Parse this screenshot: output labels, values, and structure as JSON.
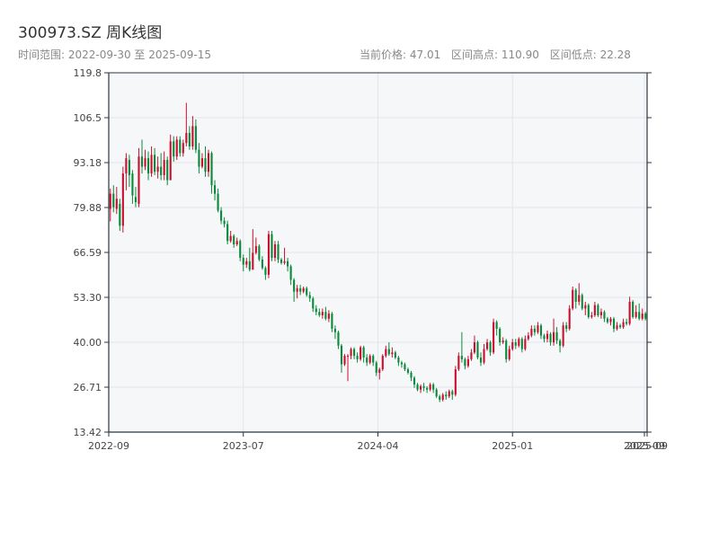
{
  "header": {
    "title": "300973.SZ 周K线图",
    "range_text": "时间范围: 2022-09-30 至 2025-09-15",
    "stat_current": "当前价格: 47.01",
    "stat_high": "区间高点: 110.90",
    "stat_low": "区间低点: 22.28"
  },
  "colors": {
    "up": "#c8102e",
    "down": "#0a8a3a",
    "plot_bg": "#f6f7f9",
    "grid": "#e3e5ea",
    "axis": "#2b3540"
  },
  "chart_data": {
    "type": "candlestick",
    "title": "300973.SZ 周K线图",
    "x_ticks": [
      {
        "label": "2022-09",
        "x": 0
      },
      {
        "label": "2023-07",
        "x": 40
      },
      {
        "label": "2024-04",
        "x": 80
      },
      {
        "label": "2025-01",
        "x": 120
      },
      {
        "label": "2025-09",
        "x": 159.2
      },
      {
        "label": "2025-09",
        "x": 160
      }
    ],
    "y_ticks": [
      "13.42",
      "26.71",
      "40.00",
      "53.30",
      "66.59",
      "79.88",
      "93.18",
      "106.5",
      "119.8"
    ],
    "ylim": [
      13.42,
      119.8
    ],
    "xlim": [
      0,
      160
    ],
    "grid": true,
    "candles": [
      [
        79.5,
        84.0,
        85.5,
        75.8
      ],
      [
        84.0,
        80.0,
        86.5,
        78.5
      ],
      [
        79.5,
        82.5,
        86.0,
        78.0
      ],
      [
        81.0,
        74.5,
        82.5,
        73.0
      ],
      [
        74.5,
        90.0,
        92.0,
        72.5
      ],
      [
        90.0,
        94.5,
        96.0,
        85.0
      ],
      [
        94.0,
        89.5,
        95.5,
        86.0
      ],
      [
        90.0,
        83.5,
        91.0,
        81.0
      ],
      [
        83.0,
        81.5,
        86.0,
        80.0
      ],
      [
        81.0,
        95.0,
        97.5,
        80.0
      ],
      [
        95.0,
        92.0,
        100.0,
        90.0
      ],
      [
        92.0,
        94.5,
        97.0,
        91.0
      ],
      [
        94.5,
        90.0,
        96.5,
        88.0
      ],
      [
        90.0,
        95.5,
        98.0,
        89.0
      ],
      [
        95.5,
        90.5,
        97.5,
        89.5
      ],
      [
        90.5,
        92.0,
        95.0,
        88.5
      ],
      [
        92.0,
        89.5,
        96.0,
        88.0
      ],
      [
        89.5,
        94.0,
        96.5,
        88.0
      ],
      [
        94.0,
        88.0,
        95.0,
        86.5
      ],
      [
        88.0,
        99.5,
        101.5,
        88.0
      ],
      [
        99.5,
        95.0,
        101.0,
        93.5
      ],
      [
        95.0,
        100.0,
        101.0,
        94.0
      ],
      [
        100.0,
        96.0,
        101.0,
        95.0
      ],
      [
        96.0,
        99.0,
        100.0,
        95.0
      ],
      [
        99.0,
        102.0,
        110.9,
        98.0
      ],
      [
        102.0,
        98.0,
        104.0,
        97.0
      ],
      [
        98.0,
        104.0,
        107.0,
        97.0
      ],
      [
        104.0,
        97.0,
        106.0,
        96.0
      ],
      [
        97.0,
        92.0,
        99.0,
        90.0
      ],
      [
        92.0,
        94.5,
        96.0,
        91.5
      ],
      [
        94.5,
        90.5,
        98.0,
        89.0
      ],
      [
        90.5,
        96.0,
        97.0,
        89.0
      ],
      [
        96.0,
        86.5,
        96.5,
        84.0
      ],
      [
        86.5,
        84.0,
        88.0,
        82.0
      ],
      [
        84.0,
        79.0,
        85.5,
        78.5
      ],
      [
        79.0,
        76.0,
        80.0,
        75.0
      ],
      [
        76.0,
        75.0,
        77.0,
        74.0
      ],
      [
        75.0,
        70.0,
        76.0,
        69.0
      ],
      [
        70.0,
        71.5,
        73.0,
        69.5
      ],
      [
        71.5,
        69.0,
        72.0,
        68.0
      ],
      [
        69.0,
        70.0,
        71.0,
        68.5
      ],
      [
        70.0,
        65.0,
        70.5,
        64.0
      ],
      [
        65.0,
        63.0,
        66.0,
        61.0
      ],
      [
        63.0,
        64.0,
        65.0,
        62.0
      ],
      [
        64.0,
        61.5,
        68.0,
        61.0
      ],
      [
        61.5,
        66.5,
        73.5,
        61.5
      ],
      [
        66.5,
        68.5,
        71.0,
        66.0
      ],
      [
        68.5,
        64.5,
        69.0,
        64.0
      ],
      [
        64.5,
        62.0,
        65.5,
        61.5
      ],
      [
        62.0,
        60.0,
        62.5,
        58.5
      ],
      [
        60.0,
        72.0,
        73.0,
        59.0
      ],
      [
        72.0,
        65.0,
        73.0,
        64.0
      ],
      [
        65.0,
        69.0,
        70.0,
        64.0
      ],
      [
        69.0,
        64.5,
        70.0,
        63.5
      ],
      [
        64.5,
        63.5,
        65.0,
        63.0
      ],
      [
        63.5,
        64.0,
        68.0,
        63.0
      ],
      [
        64.0,
        62.5,
        65.0,
        61.0
      ],
      [
        62.5,
        58.5,
        63.0,
        57.0
      ],
      [
        58.5,
        55.0,
        59.0,
        52.0
      ],
      [
        55.0,
        56.0,
        57.0,
        53.0
      ],
      [
        56.0,
        55.0,
        57.0,
        54.0
      ],
      [
        55.0,
        56.0,
        56.5,
        54.5
      ],
      [
        56.0,
        54.0,
        56.5,
        53.5
      ],
      [
        54.0,
        53.0,
        55.0,
        52.0
      ],
      [
        53.0,
        50.0,
        53.5,
        49.0
      ],
      [
        50.0,
        49.0,
        51.0,
        48.0
      ],
      [
        49.0,
        48.0,
        50.0,
        47.5
      ],
      [
        48.0,
        49.0,
        50.0,
        47.0
      ],
      [
        49.0,
        47.0,
        50.5,
        46.5
      ],
      [
        47.0,
        48.5,
        49.5,
        46.0
      ],
      [
        48.5,
        44.0,
        49.0,
        43.0
      ],
      [
        44.0,
        43.0,
        45.0,
        41.0
      ],
      [
        43.0,
        39.0,
        43.5,
        38.0
      ],
      [
        39.0,
        33.5,
        39.5,
        31.0
      ],
      [
        33.5,
        36.0,
        36.5,
        33.0
      ],
      [
        36.0,
        36.0,
        36.5,
        28.5
      ],
      [
        36.0,
        38.0,
        38.5,
        35.0
      ],
      [
        38.0,
        36.0,
        38.5,
        35.0
      ],
      [
        36.0,
        35.0,
        37.0,
        34.0
      ],
      [
        35.0,
        38.5,
        39.0,
        34.5
      ],
      [
        38.5,
        35.5,
        39.0,
        34.0
      ],
      [
        35.5,
        34.0,
        36.5,
        33.0
      ],
      [
        34.0,
        36.0,
        36.5,
        33.5
      ],
      [
        36.0,
        34.0,
        36.5,
        33.0
      ],
      [
        34.0,
        31.0,
        34.5,
        30.0
      ],
      [
        31.0,
        32.0,
        32.5,
        29.0
      ],
      [
        32.0,
        36.0,
        36.5,
        31.5
      ],
      [
        36.0,
        38.0,
        39.0,
        35.5
      ],
      [
        38.0,
        36.5,
        40.0,
        36.0
      ],
      [
        36.5,
        37.0,
        38.5,
        35.5
      ],
      [
        37.0,
        35.5,
        37.5,
        35.0
      ],
      [
        35.5,
        34.0,
        36.0,
        33.0
      ],
      [
        34.0,
        33.5,
        34.5,
        32.5
      ],
      [
        33.5,
        32.0,
        34.0,
        31.5
      ],
      [
        32.0,
        31.0,
        32.5,
        30.5
      ],
      [
        31.0,
        29.5,
        31.5,
        28.5
      ],
      [
        29.5,
        27.5,
        30.0,
        26.5
      ],
      [
        27.5,
        26.0,
        28.0,
        25.5
      ],
      [
        26.0,
        27.0,
        27.5,
        25.0
      ],
      [
        27.0,
        26.5,
        28.0,
        25.5
      ],
      [
        26.5,
        26.0,
        27.0,
        25.0
      ],
      [
        26.0,
        27.5,
        28.0,
        25.5
      ],
      [
        27.5,
        26.0,
        28.0,
        25.0
      ],
      [
        26.0,
        24.0,
        26.5,
        23.5
      ],
      [
        24.0,
        23.0,
        24.5,
        22.3
      ],
      [
        23.0,
        24.5,
        25.0,
        22.5
      ],
      [
        24.5,
        24.0,
        25.5,
        23.0
      ],
      [
        24.0,
        25.5,
        26.0,
        23.5
      ],
      [
        25.5,
        24.5,
        26.0,
        23.0
      ],
      [
        24.5,
        32.0,
        33.0,
        24.0
      ],
      [
        32.0,
        36.0,
        37.0,
        31.5
      ],
      [
        36.0,
        35.0,
        43.0,
        34.0
      ],
      [
        35.0,
        33.0,
        35.5,
        32.0
      ],
      [
        33.0,
        35.0,
        36.0,
        32.5
      ],
      [
        35.0,
        37.0,
        38.0,
        34.5
      ],
      [
        37.0,
        40.0,
        42.0,
        36.5
      ],
      [
        40.0,
        35.5,
        40.5,
        35.0
      ],
      [
        35.5,
        34.0,
        37.0,
        33.0
      ],
      [
        34.0,
        38.0,
        39.5,
        33.5
      ],
      [
        38.0,
        40.0,
        41.0,
        37.5
      ],
      [
        40.0,
        37.0,
        40.5,
        36.0
      ],
      [
        37.0,
        46.0,
        47.0,
        36.5
      ],
      [
        46.0,
        44.0,
        46.5,
        42.0
      ],
      [
        44.0,
        40.0,
        44.5,
        39.0
      ],
      [
        40.0,
        40.5,
        41.5,
        39.5
      ],
      [
        40.5,
        35.0,
        41.0,
        34.0
      ],
      [
        35.0,
        38.0,
        39.0,
        34.5
      ],
      [
        38.0,
        40.0,
        41.0,
        37.5
      ],
      [
        40.0,
        39.0,
        41.0,
        38.0
      ],
      [
        39.0,
        41.0,
        41.5,
        38.5
      ],
      [
        41.0,
        38.0,
        41.5,
        37.0
      ],
      [
        38.0,
        41.0,
        42.0,
        37.5
      ],
      [
        41.0,
        42.0,
        43.0,
        40.5
      ],
      [
        42.0,
        44.0,
        45.0,
        41.5
      ],
      [
        44.0,
        43.0,
        45.0,
        42.0
      ],
      [
        43.0,
        45.0,
        46.0,
        42.5
      ],
      [
        45.0,
        42.0,
        45.5,
        41.0
      ],
      [
        42.0,
        41.0,
        42.5,
        40.0
      ],
      [
        41.0,
        42.5,
        43.5,
        40.0
      ],
      [
        42.5,
        40.0,
        43.0,
        39.0
      ],
      [
        40.0,
        43.0,
        47.0,
        39.0
      ],
      [
        43.0,
        40.5,
        44.5,
        39.5
      ],
      [
        40.5,
        39.0,
        41.0,
        37.0
      ],
      [
        39.0,
        45.0,
        46.0,
        38.5
      ],
      [
        45.0,
        44.0,
        46.0,
        43.0
      ],
      [
        44.0,
        50.0,
        51.0,
        43.5
      ],
      [
        50.0,
        55.5,
        56.5,
        49.5
      ],
      [
        55.5,
        52.0,
        56.0,
        50.0
      ],
      [
        52.0,
        54.0,
        57.5,
        51.0
      ],
      [
        54.0,
        50.0,
        54.5,
        49.5
      ],
      [
        50.0,
        51.0,
        52.0,
        48.0
      ],
      [
        51.0,
        47.5,
        51.5,
        47.0
      ],
      [
        47.5,
        48.0,
        49.0,
        47.0
      ],
      [
        48.0,
        51.0,
        52.0,
        47.5
      ],
      [
        51.0,
        48.0,
        51.5,
        47.5
      ],
      [
        48.0,
        49.0,
        50.0,
        47.0
      ],
      [
        49.0,
        47.0,
        49.5,
        46.0
      ],
      [
        47.0,
        46.0,
        47.5,
        45.5
      ],
      [
        46.0,
        47.0,
        47.5,
        45.0
      ],
      [
        47.0,
        44.0,
        47.5,
        43.0
      ],
      [
        44.0,
        45.0,
        46.0,
        43.5
      ],
      [
        45.0,
        44.5,
        45.5,
        44.0
      ],
      [
        44.5,
        46.0,
        47.0,
        44.0
      ],
      [
        46.0,
        45.5,
        47.0,
        45.0
      ],
      [
        45.5,
        52.0,
        53.5,
        45.0
      ],
      [
        52.0,
        47.5,
        52.5,
        47.0
      ],
      [
        47.5,
        49.0,
        51.0,
        47.0
      ],
      [
        49.0,
        47.0,
        51.5,
        46.5
      ],
      [
        47.0,
        48.5,
        50.0,
        46.5
      ],
      [
        48.5,
        47.01,
        49.0,
        46.5
      ]
    ]
  }
}
